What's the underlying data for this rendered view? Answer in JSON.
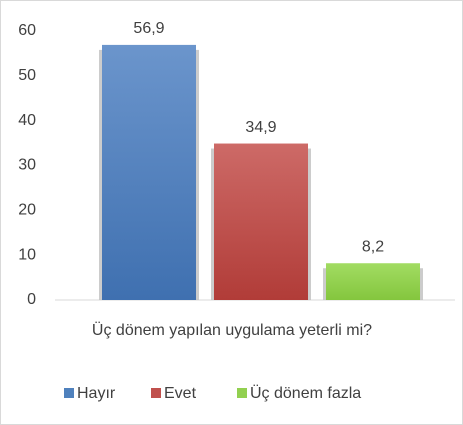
{
  "chart_data": {
    "type": "bar",
    "x_label": "Üç dönem yapılan uygulama yeterli mi?",
    "categories": [
      "Hayır",
      "Evet",
      "Üç dönem fazla"
    ],
    "values": [
      56.9,
      34.9,
      8.2
    ],
    "value_labels": [
      "56,9",
      "34,9",
      "8,2"
    ],
    "colors": [
      "#4f81bd",
      "#c0504d",
      "#92d050"
    ],
    "ylim": [
      0,
      60
    ],
    "yticks": [
      0,
      10,
      20,
      30,
      40,
      50,
      60
    ],
    "legend": "bottom"
  }
}
